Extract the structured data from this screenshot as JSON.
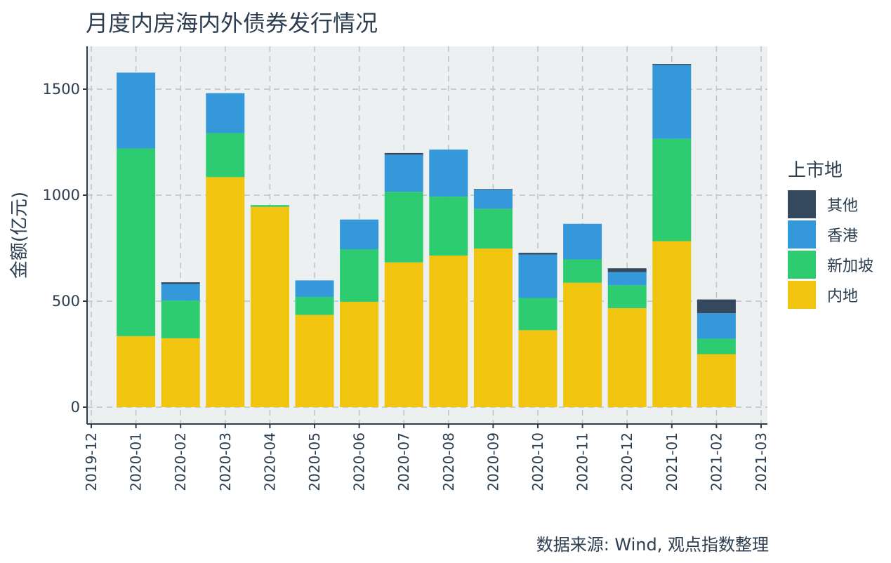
{
  "chart_data": {
    "type": "bar",
    "stacked": true,
    "title": "月度内房海内外债券发行情况",
    "xlabel": "",
    "ylabel": "金额(亿元)",
    "ylim": [
      0,
      1700
    ],
    "y_ticks": [
      0,
      500,
      1000,
      1500
    ],
    "x_ticks": [
      "2019-12",
      "2020-01",
      "2020-02",
      "2020-03",
      "2020-04",
      "2020-05",
      "2020-06",
      "2020-07",
      "2020-08",
      "2020-09",
      "2020-10",
      "2020-11",
      "2020-12",
      "2021-01",
      "2021-02",
      "2021-03"
    ],
    "categories": [
      "2020-01",
      "2020-02",
      "2020-03",
      "2020-04",
      "2020-05",
      "2020-06",
      "2020-07",
      "2020-08",
      "2020-09",
      "2020-10",
      "2020-11",
      "2020-12",
      "2021-01",
      "2021-02"
    ],
    "series": [
      {
        "name": "内地",
        "color": "#f1c40f",
        "values": [
          335,
          325,
          1085,
          945,
          435,
          497,
          683,
          715,
          748,
          363,
          587,
          467,
          783,
          250
        ]
      },
      {
        "name": "新加坡",
        "color": "#2ecc71",
        "values": [
          885,
          178,
          208,
          8,
          85,
          248,
          333,
          278,
          188,
          152,
          110,
          108,
          483,
          73
        ]
      },
      {
        "name": "香港",
        "color": "#3498db",
        "values": [
          358,
          78,
          188,
          0,
          78,
          140,
          175,
          222,
          90,
          205,
          168,
          62,
          348,
          120
        ]
      },
      {
        "name": "其他",
        "color": "#34495e",
        "values": [
          0,
          8,
          0,
          0,
          0,
          0,
          8,
          0,
          3,
          8,
          0,
          18,
          5,
          65
        ]
      }
    ],
    "grid": true,
    "legend_title": "上市地",
    "legend_position": "right",
    "legend_order": [
      "其他",
      "香港",
      "新加坡",
      "内地"
    ]
  },
  "caption": "数据来源: Wind, 观点指数整理",
  "colors": {
    "panel_background": "#ecf0f1",
    "grid": "#bdc3c7",
    "axis": "#2c3e50",
    "text": "#2c3e50"
  }
}
